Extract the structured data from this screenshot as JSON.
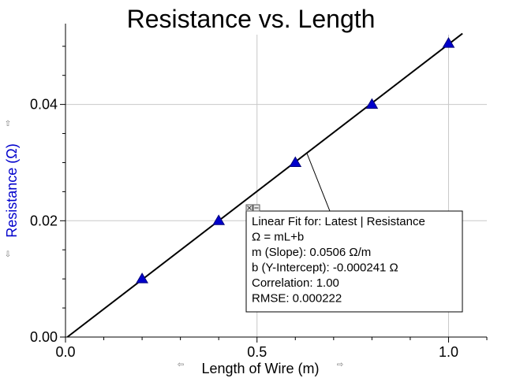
{
  "chart_data": {
    "type": "scatter",
    "title": "Resistance vs. Length",
    "xlabel": "Length of Wire (m)",
    "ylabel": "Resistance (Ω)",
    "xlim": [
      0.0,
      1.1
    ],
    "ylim": [
      0.0,
      0.052
    ],
    "x_tick_labels": [
      "0.0",
      "0.5",
      "1.0"
    ],
    "y_tick_labels": [
      "0.00",
      "0.02",
      "0.04"
    ],
    "x_ticks": [
      0.0,
      0.5,
      1.0
    ],
    "y_ticks": [
      0.0,
      0.02,
      0.04
    ],
    "grid": true,
    "series": [
      {
        "marker": "triangle",
        "color": "#0000cc",
        "points": [
          {
            "x": 0.2,
            "y": 0.01
          },
          {
            "x": 0.4,
            "y": 0.02
          },
          {
            "x": 0.6,
            "y": 0.03
          },
          {
            "x": 0.8,
            "y": 0.04
          },
          {
            "x": 1.0,
            "y": 0.0505
          }
        ]
      }
    ],
    "fit": {
      "slope": 0.0506,
      "intercept": -0.000241,
      "color": "#000000",
      "lines": [
        "Linear Fit for:  Latest | Resistance",
        "Ω = mL+b",
        "m (Slope): 0.0506 Ω/m",
        "b (Y-Intercept): -0.000241 Ω",
        "Correlation: 1.00",
        "RMSE: 0.000222"
      ]
    }
  },
  "colors": {
    "ylabel": "#0000cc",
    "xlabel": "#000000",
    "grid": "#c8c8c8"
  },
  "icons": {
    "scroll_arrows": [
      "arrow-up-icon",
      "arrow-down-icon",
      "arrow-left-icon",
      "arrow-right-icon"
    ],
    "fit_box_controls": [
      "close-icon",
      "minimize-icon"
    ]
  }
}
